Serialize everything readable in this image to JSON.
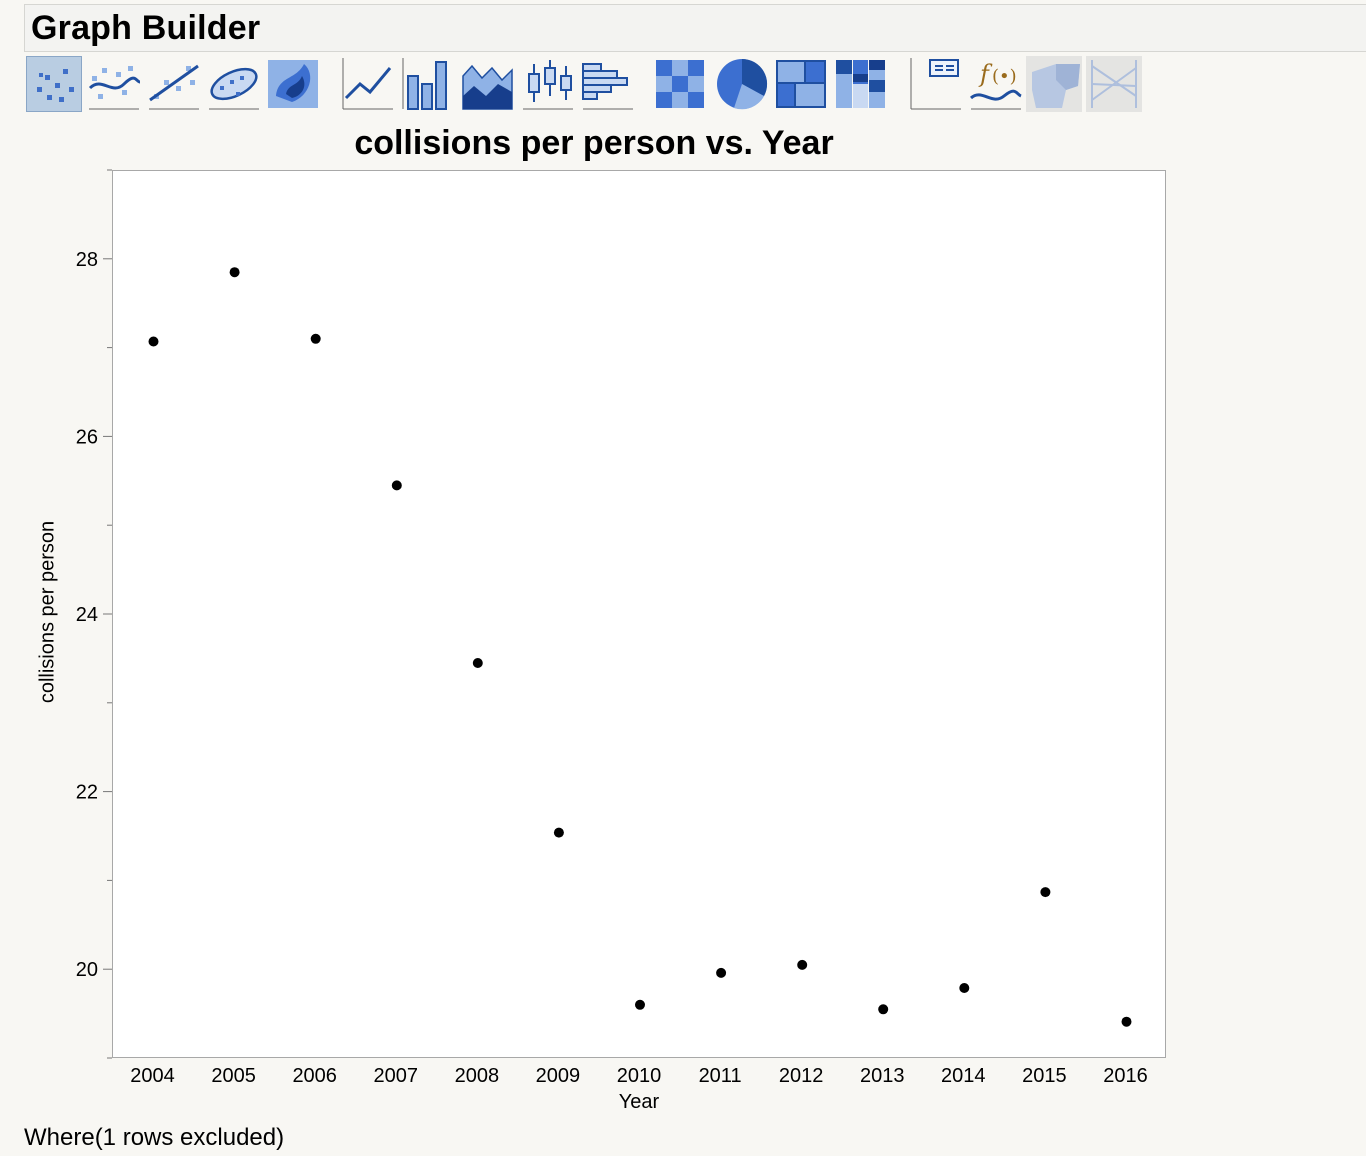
{
  "window": {
    "title": "Graph Builder"
  },
  "toolbar": {
    "items": [
      {
        "icon": "points-icon",
        "selected": true
      },
      {
        "icon": "smoother-icon"
      },
      {
        "icon": "line-of-fit-icon"
      },
      {
        "icon": "ellipse-icon"
      },
      {
        "icon": "contour-icon"
      },
      {
        "icon": "line-icon"
      },
      {
        "icon": "bar-icon"
      },
      {
        "icon": "area-icon"
      },
      {
        "icon": "box-plot-icon"
      },
      {
        "icon": "histogram-icon"
      },
      {
        "icon": "heatmap-icon"
      },
      {
        "icon": "pie-icon"
      },
      {
        "icon": "treemap-icon"
      },
      {
        "icon": "mosaic-icon"
      },
      {
        "icon": "caption-box-icon"
      },
      {
        "icon": "formula-icon"
      },
      {
        "icon": "map-shapes-icon",
        "disabled": true
      },
      {
        "icon": "parallel-icon",
        "disabled": true
      }
    ]
  },
  "chart_data": {
    "type": "scatter",
    "title": "collisions per person vs. Year",
    "xlabel": "Year",
    "ylabel": "collisions per person",
    "x": [
      2004,
      2005,
      2006,
      2007,
      2008,
      2009,
      2010,
      2011,
      2012,
      2013,
      2014,
      2015,
      2016
    ],
    "y": [
      27.08,
      27.86,
      27.11,
      25.46,
      23.46,
      21.55,
      19.61,
      19.97,
      20.06,
      19.56,
      19.8,
      20.88,
      19.42
    ],
    "xticks": [
      "2004",
      "2005",
      "2006",
      "2007",
      "2008",
      "2009",
      "2010",
      "2011",
      "2012",
      "2013",
      "2014",
      "2015",
      "2016"
    ],
    "yticks": [
      "20",
      "22",
      "24",
      "26",
      "28"
    ],
    "ylim": [
      19.0,
      29.0
    ],
    "grid": false,
    "marker_color": "#000000"
  },
  "footer": {
    "text": "Where(1 rows excluded)"
  },
  "colors": {
    "accent": "#1f4fa0",
    "icon_light": "#8fb2e6",
    "icon_mid": "#3c6fd0",
    "selected_bg": "#b9cde2"
  }
}
